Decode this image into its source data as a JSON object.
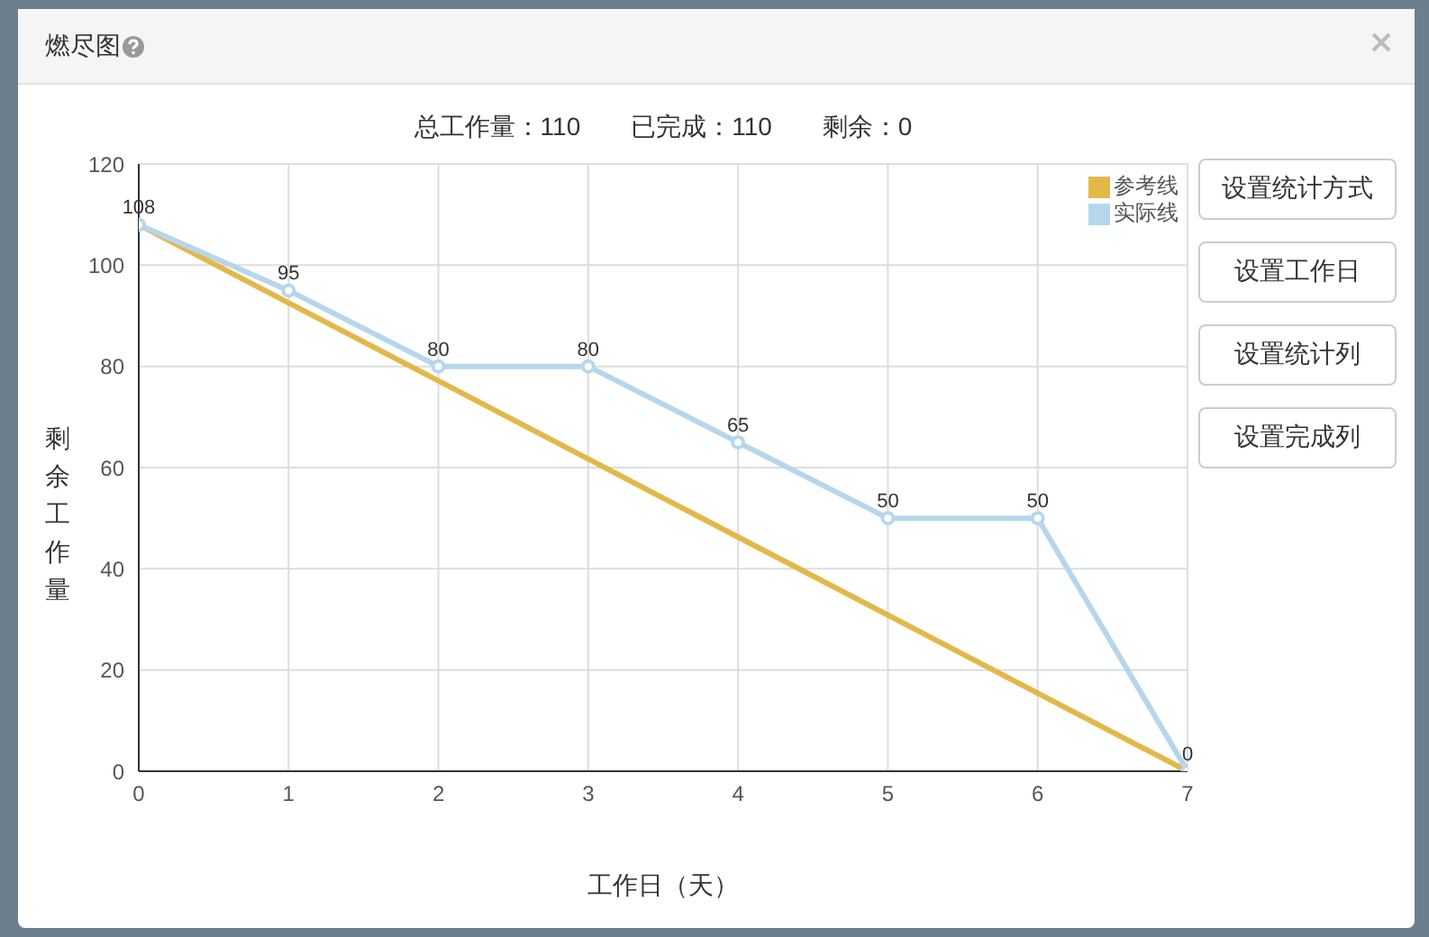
{
  "chart_data": {
    "type": "line",
    "title": "燃尽图",
    "subtitle": "总工作量：110　　已完成：110　　剩余：0",
    "xlabel": "工作日（天）",
    "ylabel": "剩余工作量",
    "xlim": [
      0,
      7
    ],
    "xticks": [
      0,
      1,
      2,
      3,
      4,
      5,
      6,
      7
    ],
    "ylim": [
      0,
      120
    ],
    "yticks": [
      0,
      20,
      40,
      60,
      80,
      100,
      120
    ],
    "grid": true,
    "legend": "top right",
    "series": [
      {
        "name": "参考线",
        "color": "#e3b849",
        "x": [
          0,
          7
        ],
        "values": [
          108,
          0
        ],
        "marker": "none"
      },
      {
        "name": "实际线",
        "color": "#b7d6ec",
        "x": [
          0,
          1,
          2,
          3,
          4,
          5,
          6,
          7
        ],
        "values": [
          108,
          95,
          80,
          80,
          65,
          50,
          50,
          0
        ],
        "marker": "circle",
        "value_labels": [
          "108",
          "95",
          "80",
          "80",
          "65",
          "50",
          "50",
          "0"
        ]
      }
    ],
    "annotations": [
      "设置统计方式",
      "设置工作日",
      "设置统计列",
      "设置完成列"
    ]
  }
}
